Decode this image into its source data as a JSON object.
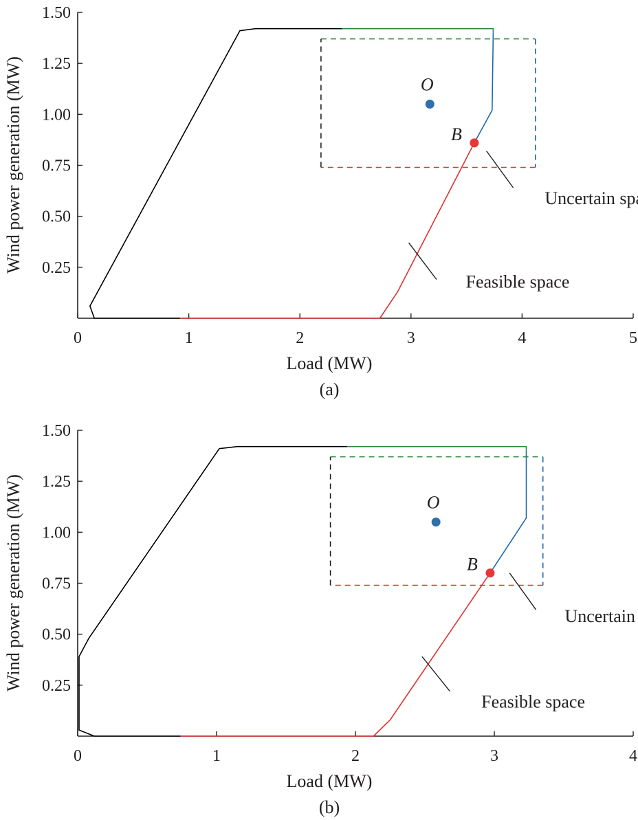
{
  "chart_data": [
    {
      "type": "line",
      "panel_label": "(a)",
      "xlabel": "Load (MW)",
      "ylabel": "Wind power generation (MW)",
      "xlim": [
        0,
        5
      ],
      "ylim": [
        0,
        1.5
      ],
      "xticks": [
        "0",
        "1",
        "2",
        "3",
        "4",
        "5"
      ],
      "yticks": [
        "0.25",
        "0.50",
        "0.75",
        "1.00",
        "1.25",
        "1.50"
      ],
      "series": [
        {
          "color": "#000000",
          "dashed": false,
          "points": [
            [
              0.92,
              0.0
            ],
            [
              0.15,
              0.0
            ],
            [
              0.11,
              0.06
            ],
            [
              1.46,
              1.41
            ],
            [
              1.6,
              1.42
            ],
            [
              2.38,
              1.42
            ]
          ]
        },
        {
          "color": "#2e8b3e",
          "dashed": false,
          "points": [
            [
              2.38,
              1.42
            ],
            [
              3.74,
              1.42
            ],
            [
              3.74,
              1.4
            ]
          ]
        },
        {
          "color": "#2166a8",
          "dashed": false,
          "points": [
            [
              3.74,
              1.4
            ],
            [
              3.73,
              1.02
            ],
            [
              3.57,
              0.86
            ]
          ]
        },
        {
          "color": "#e03030",
          "dashed": false,
          "points": [
            [
              3.57,
              0.86
            ],
            [
              2.88,
              0.13
            ],
            [
              2.72,
              0.0
            ],
            [
              0.92,
              0.0
            ]
          ]
        },
        {
          "color": "#2e8b3e",
          "dashed": true,
          "points": [
            [
              2.19,
              1.37
            ],
            [
              4.12,
              1.37
            ]
          ]
        },
        {
          "color": "#2166a8",
          "dashed": true,
          "points": [
            [
              4.12,
              1.37
            ],
            [
              4.12,
              0.74
            ]
          ]
        },
        {
          "color": "#e03030",
          "dashed": true,
          "points": [
            [
              4.12,
              0.74
            ],
            [
              2.19,
              0.74
            ]
          ]
        },
        {
          "color": "#231f20",
          "dashed": true,
          "points": [
            [
              2.19,
              0.74
            ],
            [
              2.19,
              1.37
            ]
          ]
        }
      ],
      "markers": [
        {
          "label": "O",
          "x": 3.17,
          "y": 1.05,
          "color": "#2e6fad"
        },
        {
          "label": "B",
          "x": 3.57,
          "y": 0.86,
          "color": "#e83535"
        }
      ],
      "annotations": [
        {
          "text": "Uncertain space",
          "from": [
            3.68,
            0.82
          ],
          "to": [
            3.92,
            0.64
          ],
          "at": [
            4.72,
            0.59
          ]
        },
        {
          "text": "Feasible space",
          "from": [
            2.98,
            0.37
          ],
          "to": [
            3.23,
            0.19
          ],
          "at": [
            3.96,
            0.18
          ]
        }
      ]
    },
    {
      "type": "line",
      "panel_label": "(b)",
      "xlabel": "Load (MW)",
      "ylabel": "Wind power generation (MW)",
      "xlim": [
        0,
        4
      ],
      "ylim": [
        0,
        1.5
      ],
      "xticks": [
        "0",
        "1",
        "2",
        "3",
        "4"
      ],
      "yticks": [
        "0.25",
        "0.50",
        "0.75",
        "1.00",
        "1.25",
        "1.50"
      ],
      "series": [
        {
          "color": "#000000",
          "dashed": false,
          "points": [
            [
              0.74,
              0.0
            ],
            [
              0.12,
              0.0
            ],
            [
              0.01,
              0.03
            ],
            [
              0.01,
              0.39
            ],
            [
              0.08,
              0.48
            ],
            [
              1.02,
              1.41
            ],
            [
              1.15,
              1.42
            ],
            [
              1.94,
              1.42
            ]
          ]
        },
        {
          "color": "#2e8b3e",
          "dashed": false,
          "points": [
            [
              1.94,
              1.42
            ],
            [
              3.23,
              1.42
            ],
            [
              3.23,
              1.4
            ]
          ]
        },
        {
          "color": "#2166a8",
          "dashed": false,
          "points": [
            [
              3.23,
              1.4
            ],
            [
              3.23,
              1.07
            ],
            [
              2.97,
              0.8
            ]
          ]
        },
        {
          "color": "#e03030",
          "dashed": false,
          "points": [
            [
              2.97,
              0.8
            ],
            [
              2.25,
              0.08
            ],
            [
              2.13,
              0.0
            ],
            [
              0.74,
              0.0
            ]
          ]
        },
        {
          "color": "#2e8b3e",
          "dashed": true,
          "points": [
            [
              1.82,
              1.37
            ],
            [
              3.35,
              1.37
            ]
          ]
        },
        {
          "color": "#2166a8",
          "dashed": true,
          "points": [
            [
              3.35,
              1.37
            ],
            [
              3.35,
              0.74
            ]
          ]
        },
        {
          "color": "#e03030",
          "dashed": true,
          "points": [
            [
              3.35,
              0.74
            ],
            [
              1.82,
              0.74
            ]
          ]
        },
        {
          "color": "#231f20",
          "dashed": true,
          "points": [
            [
              1.82,
              0.74
            ],
            [
              1.82,
              1.37
            ]
          ]
        }
      ],
      "markers": [
        {
          "label": "O",
          "x": 2.58,
          "y": 1.05,
          "color": "#2e6fad"
        },
        {
          "label": "B",
          "x": 2.97,
          "y": 0.8,
          "color": "#e83535"
        }
      ],
      "annotations": [
        {
          "text": "Uncertain space",
          "from": [
            3.11,
            0.8
          ],
          "to": [
            3.3,
            0.62
          ],
          "at": [
            3.92,
            0.59
          ]
        },
        {
          "text": "Feasible space",
          "from": [
            2.48,
            0.39
          ],
          "to": [
            2.68,
            0.22
          ],
          "at": [
            3.28,
            0.17
          ]
        }
      ]
    }
  ]
}
